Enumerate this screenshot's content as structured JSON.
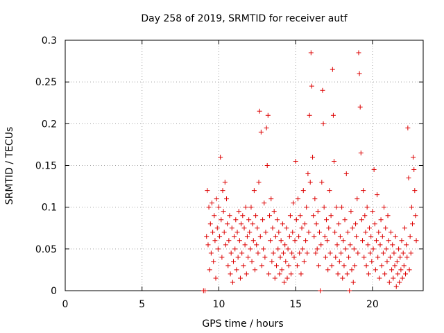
{
  "chart_data": {
    "type": "scatter",
    "title": "Day 258 of 2019, SRMTID for receiver autf",
    "xlabel": "GPS time / hours",
    "ylabel": "SRMTID / TECUs",
    "xlim": [
      0,
      23.3
    ],
    "ylim": [
      0,
      0.3
    ],
    "xticks": [
      0,
      5,
      10,
      15,
      20
    ],
    "xtick_labels": [
      "0",
      "5",
      "10",
      "15",
      "20"
    ],
    "yticks": [
      0,
      0.05,
      0.1,
      0.15,
      0.2,
      0.25,
      0.3
    ],
    "ytick_labels": [
      "0",
      "0.05",
      "0.1",
      "0.15",
      "0.2",
      "0.25",
      "0.3"
    ],
    "grid": true,
    "marker": "+",
    "color": "#dd0000",
    "series": [
      {
        "name": "SRMTID",
        "points": [
          [
            9.0,
            0.0
          ],
          [
            9.1,
            0.0
          ],
          [
            9.2,
            0.065
          ],
          [
            9.25,
            0.12
          ],
          [
            9.3,
            0.055
          ],
          [
            9.35,
            0.1
          ],
          [
            9.4,
            0.025
          ],
          [
            9.45,
            0.08
          ],
          [
            9.5,
            0.045
          ],
          [
            9.55,
            0.105
          ],
          [
            9.6,
            0.07
          ],
          [
            9.65,
            0.035
          ],
          [
            9.7,
            0.09
          ],
          [
            9.75,
            0.06
          ],
          [
            9.8,
            0.015
          ],
          [
            9.85,
            0.11
          ],
          [
            9.9,
            0.075
          ],
          [
            9.95,
            0.05
          ],
          [
            10.0,
            0.1
          ],
          [
            10.05,
            0.065
          ],
          [
            10.1,
            0.16
          ],
          [
            10.15,
            0.085
          ],
          [
            10.2,
            0.04
          ],
          [
            10.25,
            0.12
          ],
          [
            10.3,
            0.095
          ],
          [
            10.35,
            0.07
          ],
          [
            10.4,
            0.13
          ],
          [
            10.45,
            0.055
          ],
          [
            10.5,
            0.11
          ],
          [
            10.55,
            0.08
          ],
          [
            10.6,
            0.03
          ],
          [
            10.65,
            0.06
          ],
          [
            10.7,
            0.09
          ],
          [
            10.75,
            0.02
          ],
          [
            10.8,
            0.045
          ],
          [
            10.85,
            0.075
          ],
          [
            10.9,
            0.01
          ],
          [
            10.95,
            0.035
          ],
          [
            11.0,
            0.065
          ],
          [
            11.05,
            0.05
          ],
          [
            11.1,
            0.085
          ],
          [
            11.15,
            0.025
          ],
          [
            11.2,
            0.07
          ],
          [
            11.25,
            0.04
          ],
          [
            11.3,
            0.095
          ],
          [
            11.35,
            0.06
          ],
          [
            11.4,
            0.015
          ],
          [
            11.45,
            0.08
          ],
          [
            11.5,
            0.045
          ],
          [
            11.55,
            0.09
          ],
          [
            11.6,
            0.03
          ],
          [
            11.65,
            0.075
          ],
          [
            11.7,
            0.055
          ],
          [
            11.75,
            0.1
          ],
          [
            11.8,
            0.02
          ],
          [
            11.85,
            0.065
          ],
          [
            11.9,
            0.04
          ],
          [
            11.95,
            0.085
          ],
          [
            12.0,
            0.07
          ],
          [
            12.05,
            0.05
          ],
          [
            12.1,
            0.1
          ],
          [
            12.15,
            0.035
          ],
          [
            12.2,
            0.08
          ],
          [
            12.25,
            0.06
          ],
          [
            12.3,
            0.12
          ],
          [
            12.35,
            0.025
          ],
          [
            12.4,
            0.09
          ],
          [
            12.45,
            0.055
          ],
          [
            12.5,
            0.075
          ],
          [
            12.55,
            0.045
          ],
          [
            12.6,
            0.13
          ],
          [
            12.65,
            0.215
          ],
          [
            12.7,
            0.065
          ],
          [
            12.75,
            0.19
          ],
          [
            12.8,
            0.03
          ],
          [
            12.85,
            0.085
          ],
          [
            12.9,
            0.05
          ],
          [
            12.95,
            0.105
          ],
          [
            13.0,
            0.04
          ],
          [
            13.05,
            0.07
          ],
          [
            13.1,
            0.195
          ],
          [
            13.15,
            0.15
          ],
          [
            13.2,
            0.21
          ],
          [
            13.25,
            0.02
          ],
          [
            13.3,
            0.09
          ],
          [
            13.35,
            0.06
          ],
          [
            13.4,
            0.11
          ],
          [
            13.45,
            0.035
          ],
          [
            13.5,
            0.075
          ],
          [
            13.55,
            0.045
          ],
          [
            13.6,
            0.095
          ],
          [
            13.65,
            0.015
          ],
          [
            13.7,
            0.065
          ],
          [
            13.75,
            0.03
          ],
          [
            13.8,
            0.085
          ],
          [
            13.85,
            0.05
          ],
          [
            13.9,
            0.07
          ],
          [
            13.95,
            0.02
          ],
          [
            14.0,
            0.04
          ],
          [
            14.05,
            0.06
          ],
          [
            14.1,
            0.025
          ],
          [
            14.15,
            0.08
          ],
          [
            14.2,
            0.045
          ],
          [
            14.25,
            0.01
          ],
          [
            14.3,
            0.055
          ],
          [
            14.35,
            0.035
          ],
          [
            14.4,
            0.075
          ],
          [
            14.45,
            0.015
          ],
          [
            14.5,
            0.05
          ],
          [
            14.55,
            0.03
          ],
          [
            14.6,
            0.065
          ],
          [
            14.65,
            0.09
          ],
          [
            14.7,
            0.02
          ],
          [
            14.75,
            0.045
          ],
          [
            14.8,
            0.07
          ],
          [
            14.85,
            0.105
          ],
          [
            14.9,
            0.04
          ],
          [
            14.95,
            0.06
          ],
          [
            15.0,
            0.155
          ],
          [
            15.05,
            0.085
          ],
          [
            15.1,
            0.03
          ],
          [
            15.15,
            0.11
          ],
          [
            15.2,
            0.065
          ],
          [
            15.25,
            0.045
          ],
          [
            15.3,
            0.09
          ],
          [
            15.35,
            0.02
          ],
          [
            15.4,
            0.075
          ],
          [
            15.45,
            0.05
          ],
          [
            15.5,
            0.12
          ],
          [
            15.55,
            0.035
          ],
          [
            15.6,
            0.08
          ],
          [
            15.65,
            0.06
          ],
          [
            15.7,
            0.1
          ],
          [
            15.75,
            0.045
          ],
          [
            15.8,
            0.14
          ],
          [
            15.85,
            0.07
          ],
          [
            15.9,
            0.21
          ],
          [
            15.95,
            0.13
          ],
          [
            16.0,
            0.285
          ],
          [
            16.05,
            0.245
          ],
          [
            16.1,
            0.16
          ],
          [
            16.15,
            0.09
          ],
          [
            16.2,
            0.065
          ],
          [
            16.25,
            0.11
          ],
          [
            16.3,
            0.045
          ],
          [
            16.35,
            0.08
          ],
          [
            16.4,
            0.05
          ],
          [
            16.45,
            0.095
          ],
          [
            16.5,
            0.03
          ],
          [
            16.55,
            0.07
          ],
          [
            16.6,
            0.0
          ],
          [
            16.65,
            0.055
          ],
          [
            16.7,
            0.13
          ],
          [
            16.75,
            0.24
          ],
          [
            16.8,
            0.2
          ],
          [
            16.85,
            0.1
          ],
          [
            16.9,
            0.065
          ],
          [
            16.95,
            0.04
          ],
          [
            17.0,
            0.085
          ],
          [
            17.05,
            0.06
          ],
          [
            17.1,
            0.025
          ],
          [
            17.15,
            0.075
          ],
          [
            17.2,
            0.12
          ],
          [
            17.25,
            0.045
          ],
          [
            17.3,
            0.09
          ],
          [
            17.35,
            0.03
          ],
          [
            17.4,
            0.265
          ],
          [
            17.45,
            0.21
          ],
          [
            17.5,
            0.155
          ],
          [
            17.55,
            0.07
          ],
          [
            17.6,
            0.04
          ],
          [
            17.65,
            0.1
          ],
          [
            17.7,
            0.055
          ],
          [
            17.75,
            0.02
          ],
          [
            17.8,
            0.08
          ],
          [
            17.85,
            0.035
          ],
          [
            17.9,
            0.065
          ],
          [
            17.95,
            0.045
          ],
          [
            18.0,
            0.1
          ],
          [
            18.05,
            0.015
          ],
          [
            18.1,
            0.06
          ],
          [
            18.15,
            0.03
          ],
          [
            18.2,
            0.085
          ],
          [
            18.25,
            0.05
          ],
          [
            18.3,
            0.14
          ],
          [
            18.35,
            0.02
          ],
          [
            18.4,
            0.07
          ],
          [
            18.45,
            0.04
          ],
          [
            18.5,
            0.0
          ],
          [
            18.55,
            0.055
          ],
          [
            18.6,
            0.095
          ],
          [
            18.65,
            0.025
          ],
          [
            18.7,
            0.075
          ],
          [
            18.75,
            0.01
          ],
          [
            18.8,
            0.05
          ],
          [
            18.85,
            0.03
          ],
          [
            18.9,
            0.08
          ],
          [
            18.95,
            0.065
          ],
          [
            19.0,
            0.11
          ],
          [
            19.05,
            0.045
          ],
          [
            19.1,
            0.285
          ],
          [
            19.15,
            0.26
          ],
          [
            19.2,
            0.22
          ],
          [
            19.25,
            0.165
          ],
          [
            19.3,
            0.085
          ],
          [
            19.35,
            0.06
          ],
          [
            19.4,
            0.12
          ],
          [
            19.45,
            0.04
          ],
          [
            19.5,
            0.09
          ],
          [
            19.55,
            0.07
          ],
          [
            19.6,
            0.03
          ],
          [
            19.65,
            0.1
          ],
          [
            19.7,
            0.055
          ],
          [
            19.75,
            0.02
          ],
          [
            19.8,
            0.075
          ],
          [
            19.85,
            0.045
          ],
          [
            19.9,
            0.065
          ],
          [
            19.95,
            0.035
          ],
          [
            20.0,
            0.095
          ],
          [
            20.05,
            0.05
          ],
          [
            20.1,
            0.145
          ],
          [
            20.15,
            0.08
          ],
          [
            20.2,
            0.025
          ],
          [
            20.25,
            0.06
          ],
          [
            20.3,
            0.115
          ],
          [
            20.35,
            0.04
          ],
          [
            20.4,
            0.07
          ],
          [
            20.45,
            0.015
          ],
          [
            20.5,
            0.055
          ],
          [
            20.55,
            0.085
          ],
          [
            20.6,
            0.03
          ],
          [
            20.65,
            0.065
          ],
          [
            20.7,
            0.045
          ],
          [
            20.75,
            0.1
          ],
          [
            20.8,
            0.02
          ],
          [
            20.85,
            0.075
          ],
          [
            20.9,
            0.05
          ],
          [
            20.95,
            0.035
          ],
          [
            21.0,
            0.09
          ],
          [
            21.05,
            0.06
          ],
          [
            21.1,
            0.01
          ],
          [
            21.15,
            0.04
          ],
          [
            21.2,
            0.07
          ],
          [
            21.25,
            0.025
          ],
          [
            21.3,
            0.055
          ],
          [
            21.35,
            0.015
          ],
          [
            21.4,
            0.045
          ],
          [
            21.45,
            0.03
          ],
          [
            21.5,
            0.065
          ],
          [
            21.55,
            0.005
          ],
          [
            21.6,
            0.035
          ],
          [
            21.65,
            0.02
          ],
          [
            21.7,
            0.05
          ],
          [
            21.75,
            0.01
          ],
          [
            21.8,
            0.04
          ],
          [
            21.85,
            0.025
          ],
          [
            21.9,
            0.06
          ],
          [
            21.95,
            0.015
          ],
          [
            22.0,
            0.045
          ],
          [
            22.05,
            0.03
          ],
          [
            22.1,
            0.075
          ],
          [
            22.15,
            0.02
          ],
          [
            22.2,
            0.055
          ],
          [
            22.25,
            0.04
          ],
          [
            22.3,
            0.195
          ],
          [
            22.35,
            0.135
          ],
          [
            22.4,
            0.025
          ],
          [
            22.45,
            0.065
          ],
          [
            22.5,
            0.045
          ],
          [
            22.55,
            0.1
          ],
          [
            22.6,
            0.08
          ],
          [
            22.65,
            0.16
          ],
          [
            22.7,
            0.145
          ],
          [
            22.75,
            0.12
          ],
          [
            22.8,
            0.09
          ],
          [
            22.85,
            0.06
          ]
        ]
      }
    ]
  }
}
